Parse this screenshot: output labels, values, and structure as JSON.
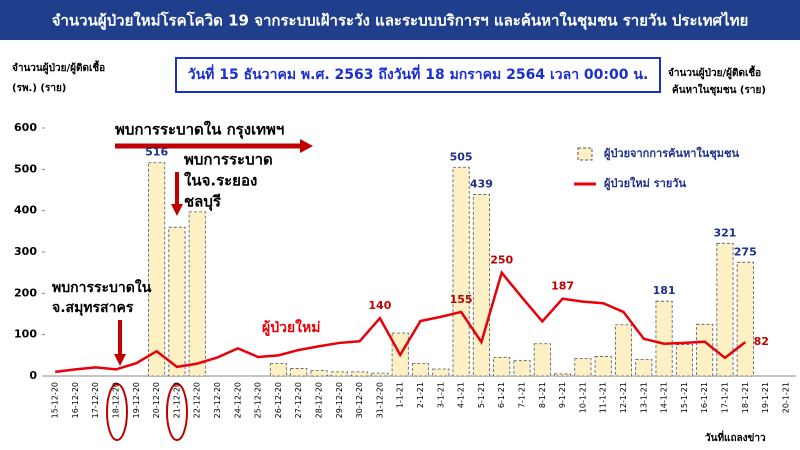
{
  "chart_data": {
    "type": "combo",
    "title": "จำนวนผู้ป่วยใหม่โรคโควิด 19 จากระบบเฝ้าระวัง และระบบบริการฯ และค้นหาในชุมชน รายวัน ประเทศไทย",
    "subtitle": "วันที่ 15 ธันวาคม พ.ศ. 2563 ถึงวันที่ 18 มกราคม 2564 เวลา 00:00 น.",
    "y_label": [
      "จำนวนผู้ป่วย/ผู้ติดเชื้อ",
      "(รพ.) (ราย)"
    ],
    "y2_label": [
      "จำนวนผู้ป่วย/ผู้ติดเชื้อ",
      "ค้นหาในชุมชน (ราย)"
    ],
    "x_label": "วันที่แถลงข่าว",
    "categories": [
      "15-12-20",
      "16-12-20",
      "17-12-20",
      "18-12-20",
      "19-12-20",
      "20-12-20",
      "21-12-20",
      "22-12-20",
      "23-12-20",
      "24-12-20",
      "25-12-20",
      "26-12-20",
      "27-12-20",
      "28-12-20",
      "29-12-20",
      "30-12-20",
      "31-12-20",
      "1-1-21",
      "2-1-21",
      "3-1-21",
      "4-1-21",
      "5-1-21",
      "6-1-21",
      "7-1-21",
      "8-1-21",
      "9-1-21",
      "10-1-21",
      "11-1-21",
      "12-1-21",
      "13-1-21",
      "14-1-21",
      "15-1-21",
      "16-1-21",
      "17-1-21",
      "18-1-21",
      "19-1-21",
      "20-1-21"
    ],
    "series": [
      {
        "name": "ผู้ป่วยจากการค้นหาในชุมชน",
        "type": "bar",
        "color": "#fdf0c4",
        "values": [
          0,
          0,
          0,
          0,
          0,
          516,
          360,
          397,
          0,
          0,
          0,
          30,
          18,
          13,
          10,
          10,
          7,
          104,
          30,
          17,
          505,
          439,
          45,
          37,
          78,
          5,
          42,
          47,
          124,
          40,
          181,
          76,
          125,
          321,
          275,
          null,
          null
        ],
        "value_labels": [
          null,
          null,
          null,
          null,
          null,
          "516",
          null,
          null,
          null,
          null,
          null,
          null,
          null,
          null,
          null,
          null,
          null,
          null,
          null,
          null,
          "505",
          "439",
          null,
          null,
          null,
          null,
          null,
          null,
          null,
          null,
          "181",
          null,
          null,
          "321",
          "275",
          null,
          null
        ]
      },
      {
        "name": "ผู้ป่วยใหม่ รายวัน",
        "type": "line",
        "color": "#e8000b",
        "values": [
          10,
          16,
          21,
          16,
          31,
          60,
          22,
          30,
          45,
          67,
          46,
          50,
          63,
          72,
          80,
          84,
          140,
          51,
          133,
          143,
          155,
          82,
          250,
          190,
          132,
          187,
          180,
          176,
          155,
          90,
          78,
          80,
          83,
          44,
          82,
          null,
          null
        ],
        "value_labels": [
          null,
          null,
          null,
          null,
          null,
          null,
          null,
          null,
          null,
          null,
          null,
          null,
          null,
          null,
          null,
          null,
          "140",
          null,
          null,
          null,
          "155",
          null,
          "250",
          null,
          null,
          "187",
          null,
          null,
          null,
          null,
          null,
          null,
          null,
          null,
          "82",
          null,
          null
        ]
      }
    ],
    "ylim": [
      0,
      600
    ],
    "yticks": [
      0,
      100,
      200,
      300,
      400,
      500,
      600
    ],
    "grid": false,
    "legend": "upper right",
    "annotations": [
      {
        "lines": [
          "พบการระบาดใน กรุงเทพฯ"
        ]
      },
      {
        "lines": [
          "พบการระบาด",
          "ในจ.ระยอง",
          "ชลบุรี"
        ]
      },
      {
        "lines": [
          "พบการระบาดใน",
          "จ.สมุทรสาคร"
        ]
      },
      {
        "lines": [
          "ผู้ป่วยใหม่"
        ]
      }
    ]
  }
}
